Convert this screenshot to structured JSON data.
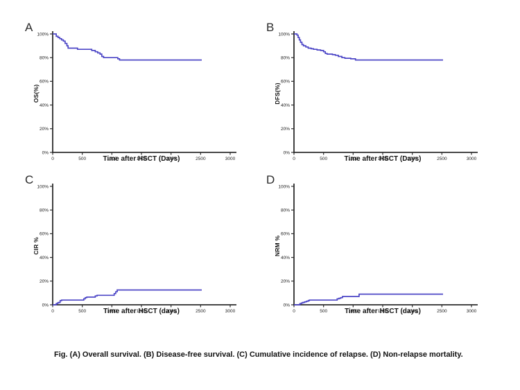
{
  "figure": {
    "caption": "Fig. (A) Overall survival. (B) Disease-free survival. (C) Cumulative incidence of relapse. (D) Non-relapse mortality.",
    "background_color": "#ffffff",
    "axis_color": "#2b2b2b",
    "curve_color": "#4b45c6"
  },
  "chart_data": [
    {
      "type": "line",
      "panel": "A",
      "ylabel": "OS(%)",
      "xlabel": "Time after HSCT (Days)",
      "xlim": [
        0,
        3000
      ],
      "ylim": [
        0,
        100
      ],
      "x_ticks": [
        0,
        500,
        1000,
        1500,
        2000,
        2500,
        3000
      ],
      "y_ticks": [
        "0%",
        "20%",
        "40%",
        "60%",
        "80%",
        "100%"
      ],
      "grid": false,
      "legend": "none",
      "step": true,
      "line_color": "#4b45c6",
      "points": [
        [
          0,
          100
        ],
        [
          35,
          100
        ],
        [
          60,
          98
        ],
        [
          90,
          97
        ],
        [
          120,
          96
        ],
        [
          150,
          95
        ],
        [
          180,
          94
        ],
        [
          210,
          92
        ],
        [
          240,
          90
        ],
        [
          260,
          88
        ],
        [
          390,
          88
        ],
        [
          420,
          87
        ],
        [
          620,
          87
        ],
        [
          660,
          86
        ],
        [
          720,
          85
        ],
        [
          760,
          84
        ],
        [
          800,
          83
        ],
        [
          830,
          81
        ],
        [
          860,
          80
        ],
        [
          1060,
          80
        ],
        [
          1100,
          79
        ],
        [
          1130,
          78
        ],
        [
          2520,
          78
        ]
      ]
    },
    {
      "type": "line",
      "panel": "B",
      "ylabel": "DFS(%)",
      "xlabel": "Time after HSCT (Days)",
      "xlim": [
        0,
        3000
      ],
      "ylim": [
        0,
        100
      ],
      "x_ticks": [
        0,
        500,
        1000,
        1500,
        2000,
        2500,
        3000
      ],
      "y_ticks": [
        "0%",
        "20%",
        "40%",
        "60%",
        "80%",
        "100%"
      ],
      "grid": false,
      "legend": "none",
      "step": true,
      "line_color": "#4b45c6",
      "points": [
        [
          0,
          100
        ],
        [
          30,
          100
        ],
        [
          50,
          99
        ],
        [
          70,
          97
        ],
        [
          90,
          95
        ],
        [
          110,
          93
        ],
        [
          135,
          91
        ],
        [
          160,
          90
        ],
        [
          200,
          89
        ],
        [
          240,
          88
        ],
        [
          290,
          87.5
        ],
        [
          330,
          87
        ],
        [
          390,
          86.5
        ],
        [
          450,
          86
        ],
        [
          500,
          85
        ],
        [
          530,
          83.5
        ],
        [
          560,
          83
        ],
        [
          650,
          82.5
        ],
        [
          700,
          82
        ],
        [
          750,
          81
        ],
        [
          810,
          80
        ],
        [
          860,
          79.5
        ],
        [
          960,
          79
        ],
        [
          1040,
          78
        ],
        [
          2520,
          78
        ]
      ]
    },
    {
      "type": "line",
      "panel": "C",
      "ylabel": "CIR %",
      "xlabel": "Time after HSCT (days)",
      "xlim": [
        0,
        3000
      ],
      "ylim": [
        0,
        100
      ],
      "x_ticks": [
        0,
        500,
        1000,
        1500,
        2000,
        2500,
        3000
      ],
      "y_ticks": [
        "0%",
        "20%",
        "40%",
        "60%",
        "80%",
        "100%"
      ],
      "grid": false,
      "legend": "none",
      "step": true,
      "line_color": "#4b45c6",
      "points": [
        [
          0,
          0
        ],
        [
          40,
          0
        ],
        [
          60,
          1
        ],
        [
          80,
          1.5
        ],
        [
          100,
          2
        ],
        [
          125,
          3.5
        ],
        [
          150,
          4
        ],
        [
          500,
          4
        ],
        [
          525,
          5
        ],
        [
          550,
          6
        ],
        [
          575,
          6.5
        ],
        [
          690,
          6.5
        ],
        [
          720,
          7.5
        ],
        [
          750,
          8
        ],
        [
          1010,
          8
        ],
        [
          1040,
          9.5
        ],
        [
          1065,
          11
        ],
        [
          1090,
          12.5
        ],
        [
          2520,
          12.5
        ]
      ]
    },
    {
      "type": "line",
      "panel": "D",
      "ylabel": "NRM %",
      "xlabel": "Time after HSCT (days)",
      "xlim": [
        0,
        3000
      ],
      "ylim": [
        0,
        100
      ],
      "x_ticks": [
        0,
        500,
        1000,
        1500,
        2000,
        2500,
        3000
      ],
      "y_ticks": [
        "0%",
        "20%",
        "40%",
        "60%",
        "80%",
        "100%"
      ],
      "grid": false,
      "legend": "none",
      "step": true,
      "line_color": "#4b45c6",
      "points": [
        [
          0,
          0
        ],
        [
          80,
          0
        ],
        [
          100,
          1
        ],
        [
          125,
          1.5
        ],
        [
          150,
          2
        ],
        [
          180,
          2.5
        ],
        [
          210,
          3
        ],
        [
          240,
          3.5
        ],
        [
          260,
          4
        ],
        [
          700,
          4
        ],
        [
          730,
          5
        ],
        [
          760,
          5.5
        ],
        [
          790,
          6
        ],
        [
          820,
          7
        ],
        [
          1070,
          7
        ],
        [
          1100,
          9
        ],
        [
          2520,
          9
        ]
      ]
    }
  ]
}
